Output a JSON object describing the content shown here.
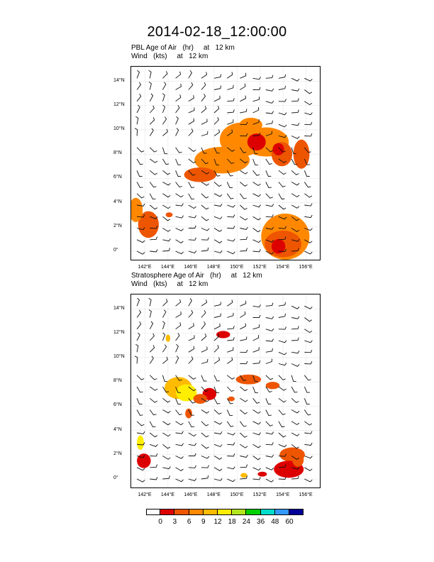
{
  "title": "2014-02-18_12:00:00",
  "panels": [
    {
      "field_line": "PBL Age of Air   (hr)     at   12 km",
      "wind_line": "Wind   (kts)     at   12 km"
    },
    {
      "field_line": "Stratosphere Age of Air   (hr)     at   12 km",
      "wind_line": "Wind   (kts)     at   12 km"
    }
  ],
  "axes": {
    "x_ticks": [
      "142°E",
      "144°E",
      "146°E",
      "148°E",
      "150°E",
      "152°E",
      "154°E",
      "156°E"
    ],
    "y_ticks": [
      "14°N",
      "12°N",
      "10°N",
      "8°N",
      "6°N",
      "4°N",
      "2°N",
      "0°"
    ],
    "x_range": [
      140.8,
      157.2
    ],
    "y_range": [
      -0.7,
      15.2
    ]
  },
  "colorbar": {
    "labels": [
      "0",
      "3",
      "6",
      "9",
      "12",
      "18",
      "24",
      "36",
      "48",
      "60"
    ],
    "colors": [
      "#ffffff",
      "#dd0000",
      "#ee5500",
      "#ff8800",
      "#ffbb00",
      "#ffee00",
      "#b4e61e",
      "#00d000",
      "#00ddcc",
      "#3399ff",
      "#000099"
    ]
  }
}
